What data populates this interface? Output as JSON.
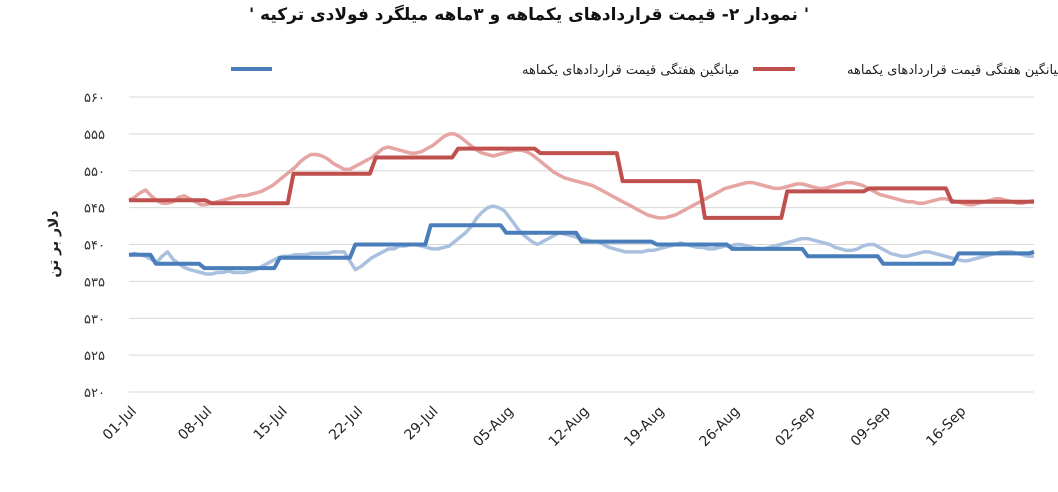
{
  "chart_data": {
    "type": "line",
    "title": "' نمودار ۲- قیمت قراردادهای یکماهه و ۳ماهه میلگرد فولادی ترکیه '",
    "ylabel": "دلار بر تن",
    "xlabel": "",
    "ylim": [
      520,
      560
    ],
    "yticks": [
      560,
      555,
      550,
      545,
      540,
      535,
      530,
      525,
      520
    ],
    "ytick_labels": [
      "۵۶۰",
      "۵۵۵",
      "۵۵۰",
      "۵۴۵",
      "۵۴۰",
      "۵۳۵",
      "۵۳۰",
      "۵۲۵",
      "۵۲۰"
    ],
    "x_tick_labels": [
      "01-Jul",
      "08-Jul",
      "15-Jul",
      "22-Jul",
      "29-Jul",
      "05-Aug",
      "12-Aug",
      "19-Aug",
      "26-Aug",
      "02-Sep",
      "09-Sep",
      "16-Sep"
    ],
    "grid": true,
    "legend_position": "top",
    "series": [
      {
        "name": "میانگین هفتگی قیمت قراردادهای یکماهه",
        "color": "#4a7ebb",
        "values": [
          538.6,
          538.6,
          538.6,
          538.6,
          538.6,
          537.4,
          537.4,
          537.4,
          537.4,
          537.4,
          537.4,
          537.4,
          537.4,
          537.4,
          536.8,
          536.8,
          536.8,
          536.8,
          536.8,
          536.8,
          536.8,
          536.8,
          536.8,
          536.8,
          536.8,
          536.8,
          536.8,
          536.8,
          538.2,
          538.2,
          538.2,
          538.2,
          538.2,
          538.2,
          538.2,
          538.2,
          538.2,
          538.2,
          538.2,
          538.2,
          538.2,
          538.2,
          540.0,
          540.0,
          540.0,
          540.0,
          540.0,
          540.0,
          540.0,
          540.0,
          540.0,
          540.0,
          540.0,
          540.0,
          540.0,
          540.0,
          542.6,
          542.6,
          542.6,
          542.6,
          542.6,
          542.6,
          542.6,
          542.6,
          542.6,
          542.6,
          542.6,
          542.6,
          542.6,
          542.6,
          541.6,
          541.6,
          541.6,
          541.6,
          541.6,
          541.6,
          541.6,
          541.6,
          541.6,
          541.6,
          541.6,
          541.6,
          541.6,
          541.6,
          540.4,
          540.4,
          540.4,
          540.4,
          540.4,
          540.4,
          540.4,
          540.4,
          540.4,
          540.4,
          540.4,
          540.4,
          540.4,
          540.4,
          540.0,
          540.0,
          540.0,
          540.0,
          540.0,
          540.0,
          540.0,
          540.0,
          540.0,
          540.0,
          540.0,
          540.0,
          540.0,
          540.0,
          539.4,
          539.4,
          539.4,
          539.4,
          539.4,
          539.4,
          539.4,
          539.4,
          539.4,
          539.4,
          539.4,
          539.4,
          539.4,
          539.4,
          538.4,
          538.4,
          538.4,
          538.4,
          538.4,
          538.4,
          538.4,
          538.4,
          538.4,
          538.4,
          538.4,
          538.4,
          538.4,
          538.4,
          537.4,
          537.4,
          537.4,
          537.4,
          537.4,
          537.4,
          537.4,
          537.4,
          537.4,
          537.4,
          537.4,
          537.4,
          537.4,
          537.4,
          538.8,
          538.8,
          538.8,
          538.8,
          538.8,
          538.8,
          538.8,
          538.8,
          538.8,
          538.8,
          538.8,
          538.8,
          538.8,
          538.8,
          539.0
        ]
      },
      {
        "name": "میانگین هفتگی قیمت قراردادهای یکماهه",
        "color": "#c0504d",
        "values": [
          546.0,
          546.0,
          546.0,
          546.0,
          546.0,
          546.0,
          546.0,
          546.0,
          546.0,
          546.0,
          546.0,
          546.0,
          546.0,
          546.0,
          545.6,
          545.6,
          545.6,
          545.6,
          545.6,
          545.6,
          545.6,
          545.6,
          545.6,
          545.6,
          545.6,
          545.6,
          545.6,
          545.6,
          549.6,
          549.6,
          549.6,
          549.6,
          549.6,
          549.6,
          549.6,
          549.6,
          549.6,
          549.6,
          549.6,
          549.6,
          549.6,
          549.6,
          551.8,
          551.8,
          551.8,
          551.8,
          551.8,
          551.8,
          551.8,
          551.8,
          551.8,
          551.8,
          551.8,
          551.8,
          551.8,
          551.8,
          553.0,
          553.0,
          553.0,
          553.0,
          553.0,
          553.0,
          553.0,
          553.0,
          553.0,
          553.0,
          553.0,
          553.0,
          553.0,
          553.0,
          552.4,
          552.4,
          552.4,
          552.4,
          552.4,
          552.4,
          552.4,
          552.4,
          552.4,
          552.4,
          552.4,
          552.4,
          552.4,
          552.4,
          548.6,
          548.6,
          548.6,
          548.6,
          548.6,
          548.6,
          548.6,
          548.6,
          548.6,
          548.6,
          548.6,
          548.6,
          548.6,
          548.6,
          543.6,
          543.6,
          543.6,
          543.6,
          543.6,
          543.6,
          543.6,
          543.6,
          543.6,
          543.6,
          543.6,
          543.6,
          543.6,
          543.6,
          547.2,
          547.2,
          547.2,
          547.2,
          547.2,
          547.2,
          547.2,
          547.2,
          547.2,
          547.2,
          547.2,
          547.2,
          547.2,
          547.2,
          547.6,
          547.6,
          547.6,
          547.6,
          547.6,
          547.6,
          547.6,
          547.6,
          547.6,
          547.6,
          547.6,
          547.6,
          547.6,
          547.6,
          545.8,
          545.8,
          545.8,
          545.8,
          545.8,
          545.8,
          545.8,
          545.8,
          545.8,
          545.8,
          545.8,
          545.8,
          545.8,
          545.8,
          545.8
        ]
      },
      {
        "name": "",
        "color": "#a9c1df",
        "values": [
          538.6,
          538.8,
          538.6,
          538.4,
          538.0,
          537.6,
          538.4,
          539.0,
          538.0,
          537.4,
          536.9,
          536.6,
          536.4,
          536.2,
          536.0,
          536.0,
          536.2,
          536.2,
          536.4,
          536.2,
          536.2,
          536.2,
          536.4,
          536.6,
          537.0,
          537.4,
          537.8,
          538.2,
          538.4,
          538.4,
          538.6,
          538.6,
          538.6,
          538.8,
          538.8,
          538.8,
          538.8,
          539.0,
          539.0,
          539.0,
          537.8,
          536.6,
          537.0,
          537.6,
          538.2,
          538.6,
          539.0,
          539.4,
          539.4,
          539.8,
          539.8,
          540.0,
          540.0,
          539.8,
          539.6,
          539.4,
          539.4,
          539.6,
          539.8,
          540.4,
          541.0,
          541.6,
          542.4,
          543.6,
          544.4,
          545.0,
          545.2,
          545.0,
          544.6,
          543.6,
          542.6,
          541.6,
          541.0,
          540.4,
          540.0,
          540.4,
          540.8,
          541.2,
          541.6,
          541.4,
          541.2,
          541.0,
          540.8,
          540.6,
          540.4,
          540.4,
          540.0,
          539.6,
          539.4,
          539.2,
          539.0,
          539.0,
          539.0,
          539.0,
          539.2,
          539.2,
          539.4,
          539.6,
          539.8,
          540.0,
          540.2,
          540.0,
          539.8,
          539.6,
          539.6,
          539.4,
          539.4,
          539.6,
          539.8,
          539.8,
          540.0,
          540.0,
          539.8,
          539.6,
          539.4,
          539.4,
          539.6,
          539.8,
          540.0,
          540.2,
          540.4,
          540.6,
          540.8,
          540.8,
          540.6,
          540.4,
          540.2,
          540.0,
          539.6,
          539.4,
          539.2,
          539.2,
          539.4,
          539.8,
          540.0,
          540.0,
          539.6,
          539.2,
          538.8,
          538.6,
          538.4,
          538.4,
          538.6,
          538.8,
          539.0,
          539.0,
          538.8,
          538.6,
          538.4,
          538.2,
          538.0,
          537.8,
          537.8,
          538.0,
          538.2,
          538.4,
          538.6,
          538.8,
          539.0,
          539.0,
          539.0,
          538.8,
          538.6,
          538.4,
          538.4
        ]
      },
      {
        "name": "",
        "color": "#e6a5a3",
        "values": [
          546.0,
          546.4,
          547.0,
          547.4,
          546.6,
          546.0,
          545.6,
          545.6,
          545.8,
          546.4,
          546.6,
          546.2,
          545.8,
          545.4,
          545.4,
          545.6,
          545.8,
          546.0,
          546.2,
          546.4,
          546.6,
          546.6,
          546.8,
          547.0,
          547.2,
          547.6,
          548.0,
          548.6,
          549.2,
          549.8,
          550.4,
          551.2,
          551.8,
          552.2,
          552.2,
          552.0,
          551.6,
          551.0,
          550.6,
          550.2,
          550.2,
          550.6,
          551.0,
          551.4,
          551.8,
          552.4,
          553.0,
          553.2,
          553.0,
          552.8,
          552.6,
          552.4,
          552.4,
          552.6,
          553.0,
          553.4,
          554.0,
          554.6,
          555.0,
          555.0,
          554.6,
          554.0,
          553.4,
          552.8,
          552.4,
          552.2,
          552.0,
          552.2,
          552.4,
          552.6,
          552.8,
          552.8,
          552.6,
          552.2,
          551.6,
          551.0,
          550.4,
          549.8,
          549.4,
          549.0,
          548.8,
          548.6,
          548.4,
          548.2,
          548.0,
          547.6,
          547.2,
          546.8,
          546.4,
          546.0,
          545.6,
          545.2,
          544.8,
          544.4,
          544.0,
          543.8,
          543.6,
          543.6,
          543.8,
          544.0,
          544.4,
          544.8,
          545.2,
          545.6,
          546.0,
          546.4,
          546.8,
          547.2,
          547.6,
          547.8,
          548.0,
          548.2,
          548.4,
          548.4,
          548.2,
          548.0,
          547.8,
          547.6,
          547.6,
          547.8,
          548.0,
          548.2,
          548.2,
          548.0,
          547.8,
          547.6,
          547.6,
          547.8,
          548.0,
          548.2,
          548.4,
          548.4,
          548.2,
          548.0,
          547.6,
          547.2,
          546.8,
          546.6,
          546.4,
          546.2,
          546.0,
          545.8,
          545.8,
          545.6,
          545.6,
          545.8,
          546.0,
          546.2,
          546.2,
          546.0,
          545.8,
          545.6,
          545.4,
          545.4,
          545.6,
          545.8,
          546.0,
          546.2,
          546.2,
          546.0,
          545.8,
          545.6,
          545.6,
          545.8,
          546.0
        ]
      }
    ],
    "legend": [
      {
        "label": "میانگین هفتگی قیمت قراردادهای یکماهه",
        "color": "#c0504d"
      },
      {
        "label": "میانگین هفتگی قیمت قراردادهای یکماهه",
        "color": "#4a7ebb"
      }
    ]
  }
}
